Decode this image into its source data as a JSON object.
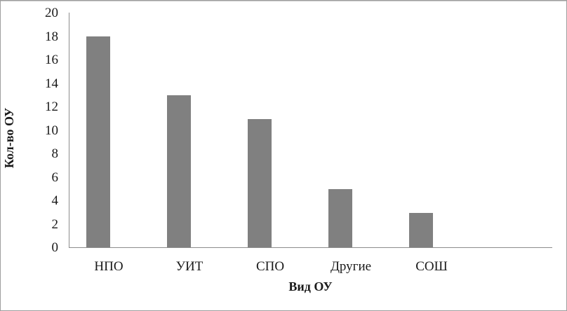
{
  "figure": {
    "background": "#ffffff",
    "border_color": "#9e9e9e"
  },
  "chart_data": {
    "type": "bar",
    "title": "",
    "categories": [
      "НПО",
      "УИТ",
      "СПО",
      "Другие",
      "СОШ"
    ],
    "values": [
      18,
      13,
      11,
      5,
      3
    ],
    "xlabel": "Вид ОУ",
    "ylabel": "Кол-во ОУ",
    "ylim": [
      0,
      20
    ],
    "ytick_step": 2,
    "ytick_labels": [
      "0",
      "2",
      "4",
      "6",
      "8",
      "10",
      "12",
      "14",
      "16",
      "18",
      "20"
    ],
    "bar_color": "#808080",
    "axis_color": "#8c8c8c",
    "grid": false,
    "legend": "none"
  }
}
